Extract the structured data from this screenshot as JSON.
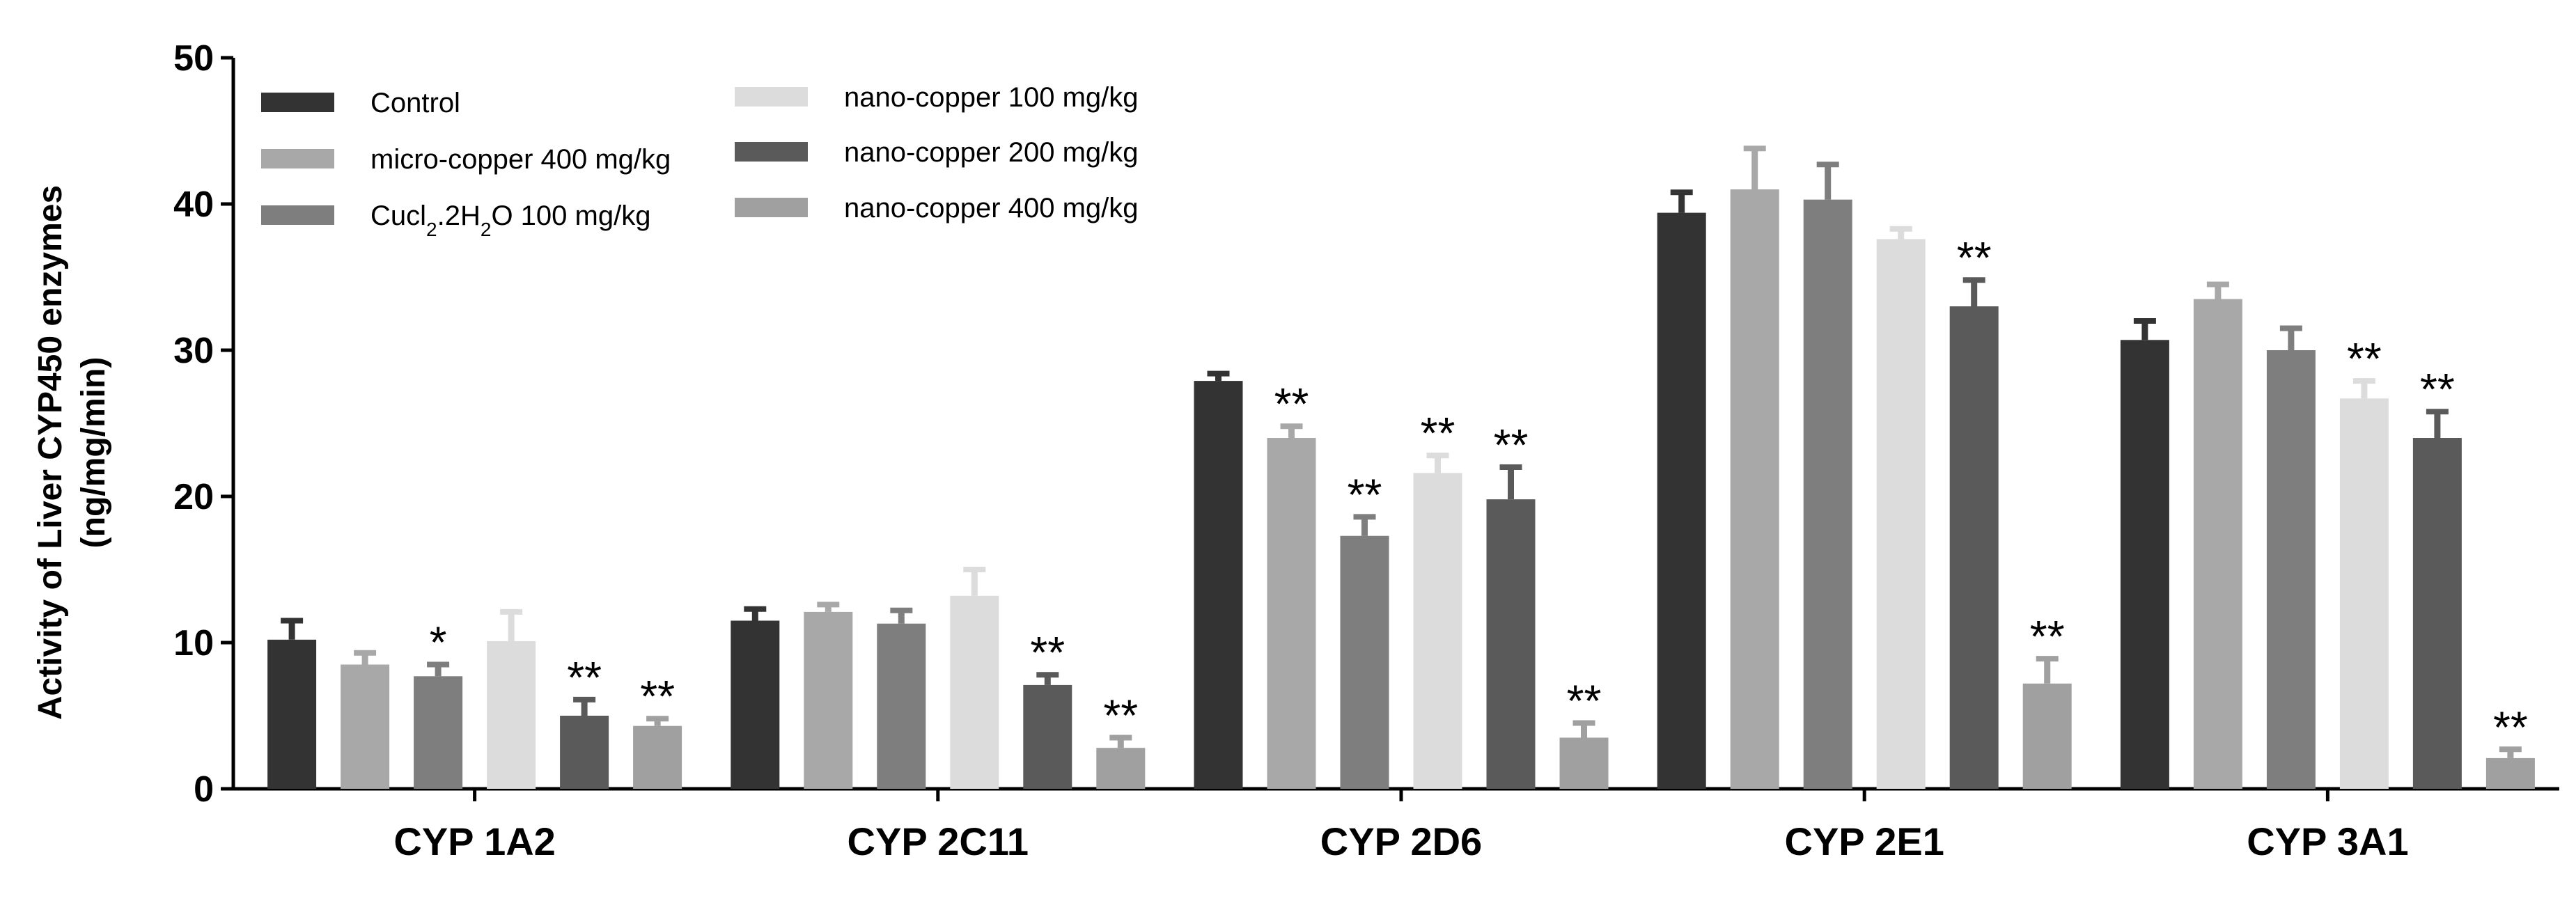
{
  "chart_data": {
    "type": "bar",
    "title": "",
    "xlabel": "",
    "ylabel": "Activity of Liver CYP450 enzymes",
    "ylabel_units": "(ng/mg/min)",
    "ylim": [
      0,
      50
    ],
    "yticks": [
      "0",
      "10",
      "20",
      "30",
      "40",
      "50"
    ],
    "legend_position": "top-left",
    "categories": [
      "CYP 1A2",
      "CYP 2C11",
      "CYP 2D6",
      "CYP 2E1",
      "CYP 3A1"
    ],
    "series": [
      {
        "name": "Control",
        "color": "#333333",
        "values": [
          10.2,
          11.5,
          27.9,
          39.4,
          30.7
        ],
        "errors": [
          1.3,
          0.8,
          0.5,
          1.4,
          1.3
        ],
        "significance": [
          "",
          "",
          "",
          "",
          ""
        ]
      },
      {
        "name": "micro-copper 400 mg/kg",
        "color": "#a8a8a8",
        "values": [
          8.5,
          12.1,
          24.0,
          41.0,
          33.5
        ],
        "errors": [
          0.8,
          0.5,
          0.8,
          2.8,
          1.0
        ],
        "significance": [
          "",
          "",
          "**",
          "",
          ""
        ]
      },
      {
        "name": "Cucl2.2H2O 100 mg/kg",
        "color": "#7e7e7e",
        "values": [
          7.7,
          11.3,
          17.3,
          40.3,
          30.0
        ],
        "errors": [
          0.8,
          0.9,
          1.3,
          2.4,
          1.5
        ],
        "significance": [
          "*",
          "",
          "**",
          "",
          ""
        ]
      },
      {
        "name": "nano-copper 100 mg/kg",
        "color": "#dcdcdc",
        "values": [
          10.1,
          13.2,
          21.6,
          37.6,
          26.7
        ],
        "errors": [
          2.0,
          1.8,
          1.2,
          0.7,
          1.2
        ],
        "significance": [
          "",
          "",
          "**",
          "",
          "**"
        ]
      },
      {
        "name": "nano-copper 200 mg/kg",
        "color": "#5a5a5a",
        "values": [
          5.0,
          7.1,
          19.8,
          33.0,
          24.0
        ],
        "errors": [
          1.1,
          0.7,
          2.2,
          1.8,
          1.8
        ],
        "significance": [
          "**",
          "**",
          "**",
          "**",
          "**"
        ]
      },
      {
        "name": "nano-copper 400 mg/kg",
        "color": "#a0a0a0",
        "values": [
          4.3,
          2.8,
          3.5,
          7.2,
          2.1
        ],
        "errors": [
          0.5,
          0.7,
          1.0,
          1.7,
          0.6
        ],
        "significance": [
          "**",
          "**",
          "**",
          "**",
          "**"
        ]
      }
    ]
  }
}
